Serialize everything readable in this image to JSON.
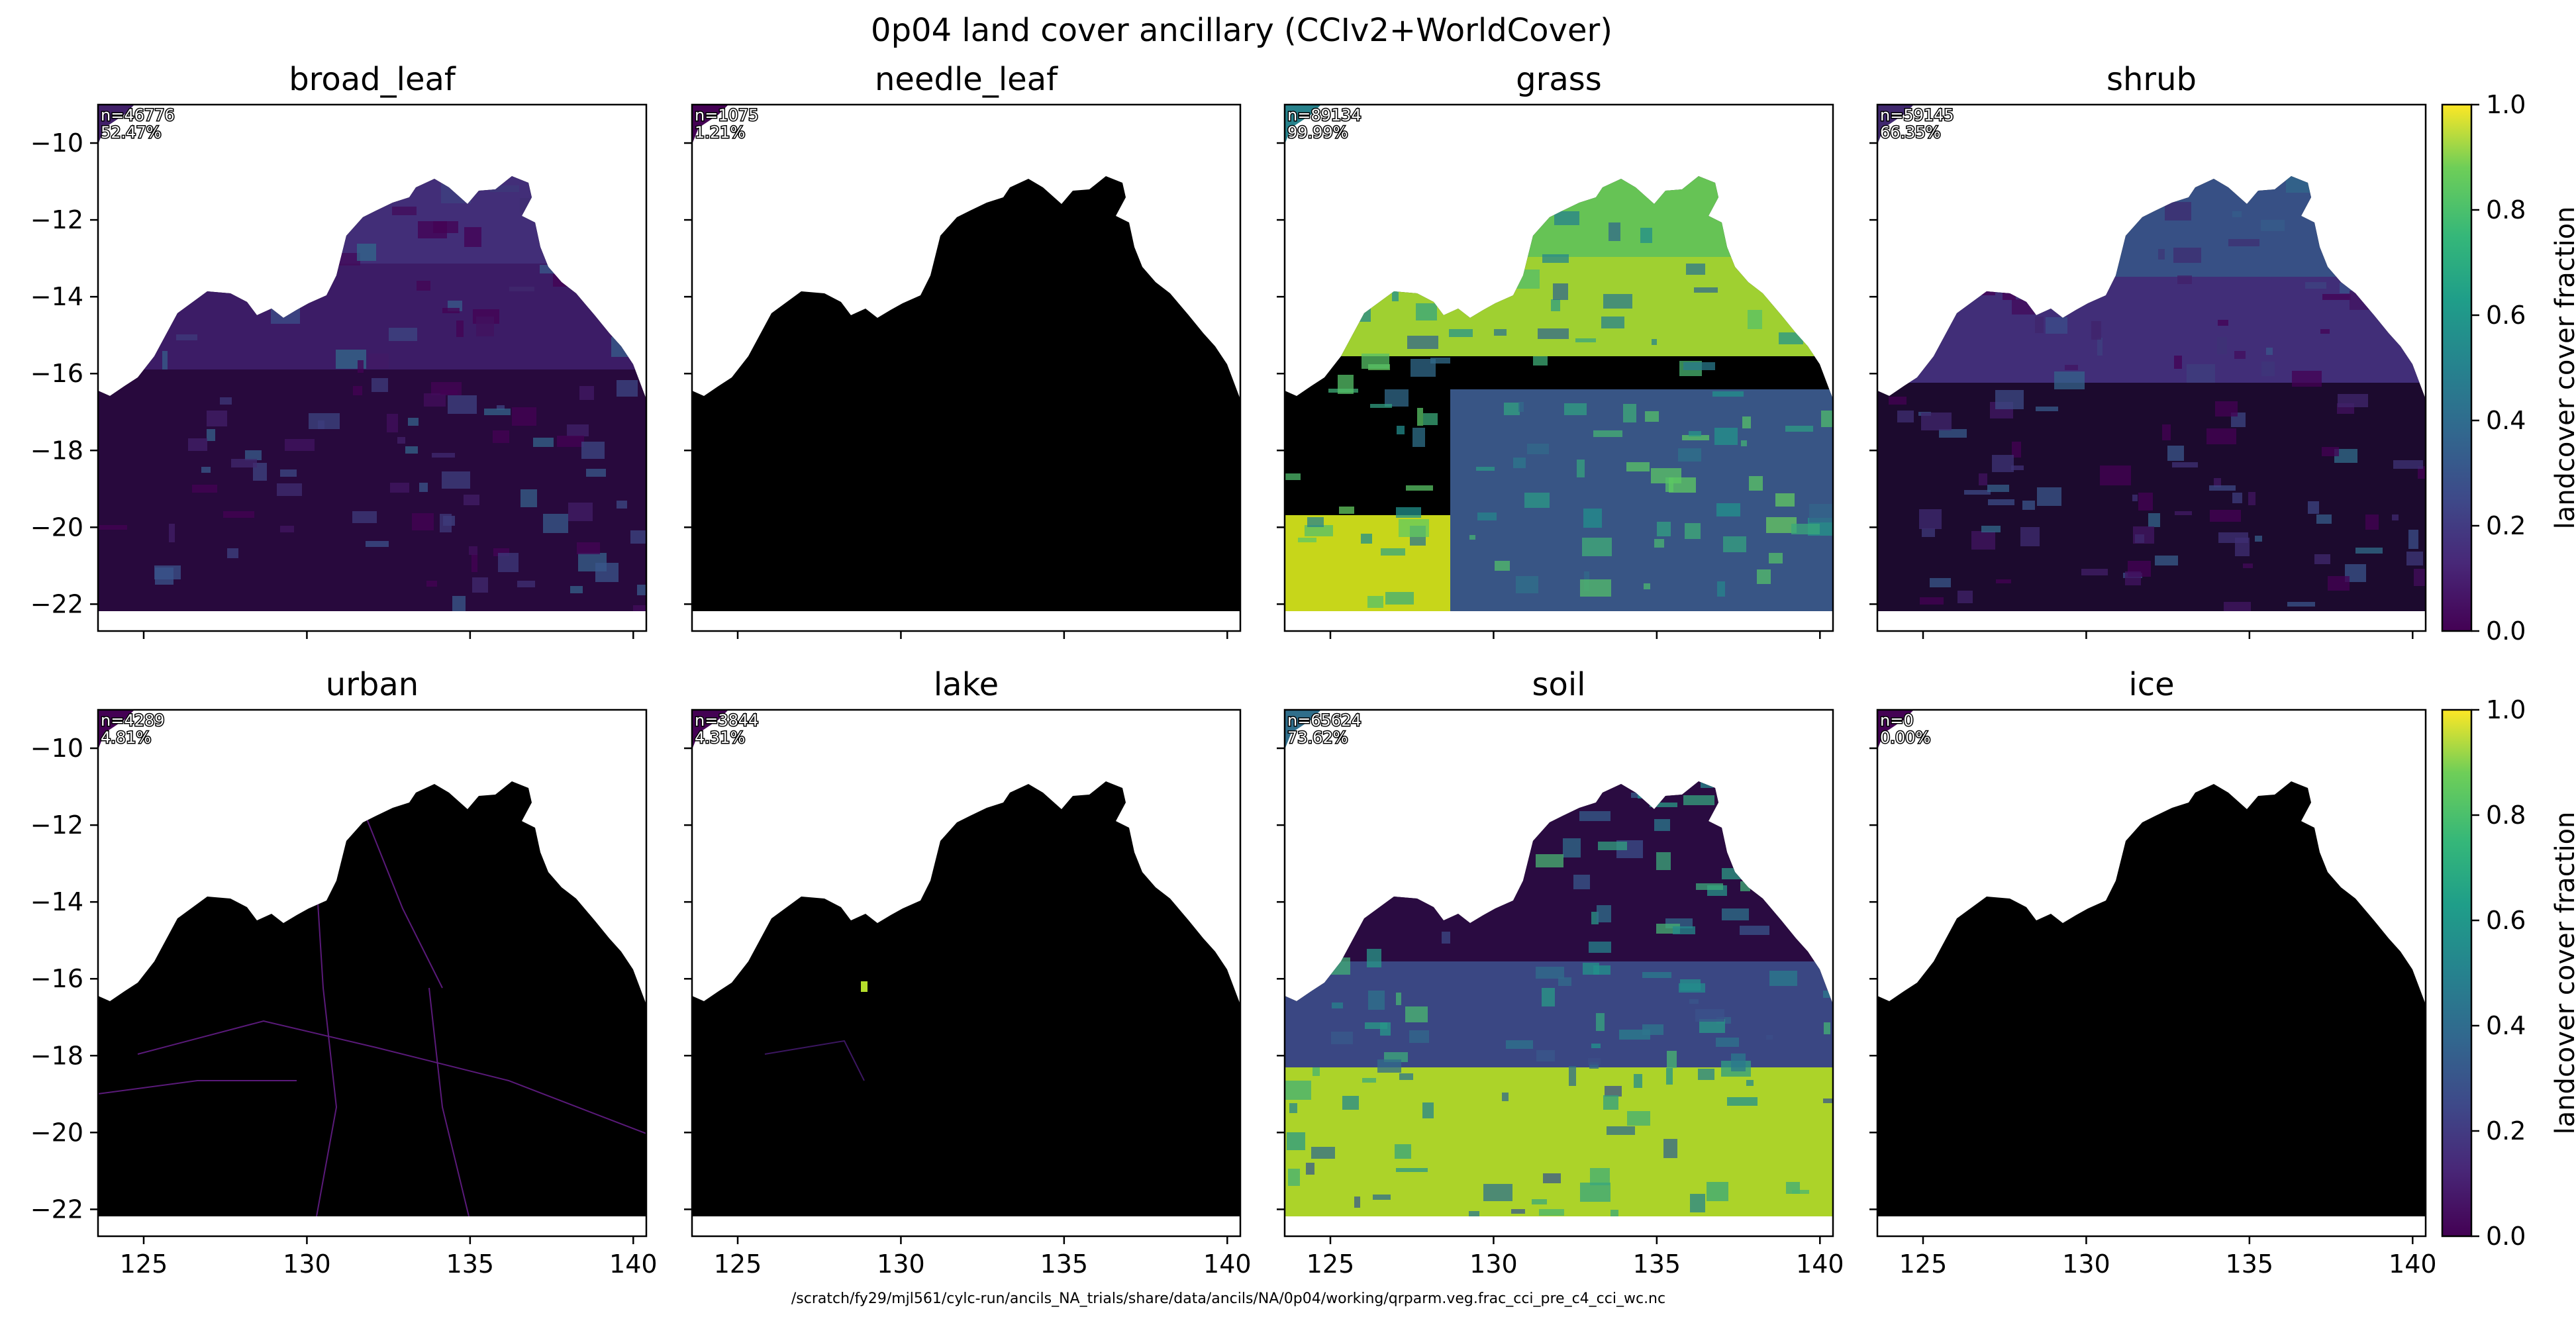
{
  "figure": {
    "title": "0p04 land cover ancillary (CCIv2+WorldCover)",
    "footer_path": "/scratch/fy29/mjl561/cylc-run/ancils_NA_trials/share/data/ancils/NA/0p04/working/qrparm.veg.frac_cci_pre_c4_cci_wc.nc",
    "colorbar_label": "landcover cover fraction",
    "colormap": [
      "#440154",
      "#3b528b",
      "#21918c",
      "#5ec962",
      "#fde725"
    ]
  },
  "chart_data": {
    "type": "heatmap",
    "xlim": [
      123.6,
      140.4
    ],
    "ylim": [
      -22.7,
      -9.0
    ],
    "x_ticks": [
      125,
      130,
      135,
      140
    ],
    "y_ticks": [
      -10,
      -12,
      -14,
      -16,
      -18,
      -20,
      -22
    ],
    "colorbar_range": [
      0.0,
      1.0
    ],
    "colorbar_ticks": [
      "0.0",
      "0.2",
      "0.4",
      "0.6",
      "0.8",
      "1.0"
    ],
    "grid": false,
    "panels": [
      {
        "title": "broad_leaf",
        "n": "n=46776",
        "pct": "52.47%",
        "mean_fraction": 0.12
      },
      {
        "title": "needle_leaf",
        "n": "n=1075",
        "pct": "1.21%",
        "mean_fraction": 0.0
      },
      {
        "title": "grass",
        "n": "n=89134",
        "pct": "99.99%",
        "mean_fraction": 0.55
      },
      {
        "title": "shrub",
        "n": "n=59145",
        "pct": "66.35%",
        "mean_fraction": 0.15
      },
      {
        "title": "urban",
        "n": "n=4289",
        "pct": "4.81%",
        "mean_fraction": 0.0
      },
      {
        "title": "lake",
        "n": "n=3844",
        "pct": "4.31%",
        "mean_fraction": 0.0
      },
      {
        "title": "soil",
        "n": "n=65624",
        "pct": "73.62%",
        "mean_fraction": 0.45
      },
      {
        "title": "ice",
        "n": "n=0",
        "pct": "0.00%",
        "mean_fraction": 0.0
      }
    ]
  }
}
